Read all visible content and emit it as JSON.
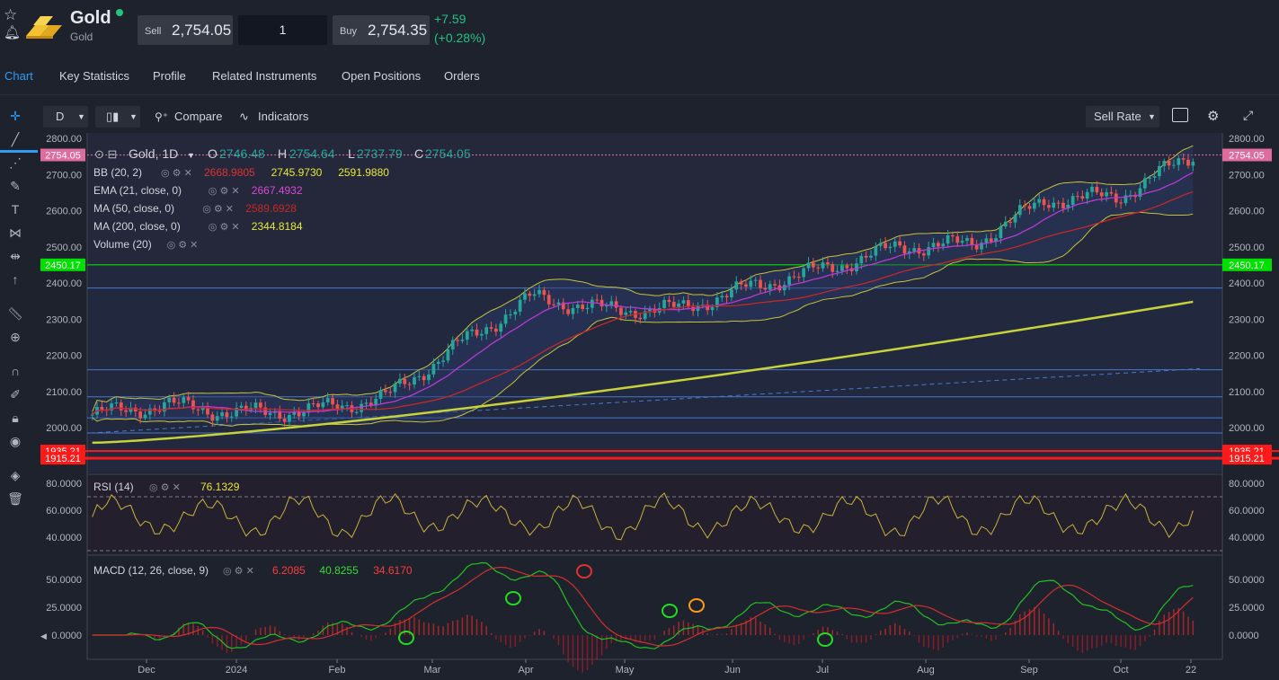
{
  "instrument": {
    "name": "Gold",
    "sub": "Gold"
  },
  "quote": {
    "sell_label": "Sell",
    "sell": "2,754.05",
    "quantity": "1",
    "buy_label": "Buy",
    "buy": "2,754.35",
    "change": "+7.59",
    "change_pct": "(+0.28%)"
  },
  "tabs": [
    "Chart",
    "Key Statistics",
    "Profile",
    "Related Instruments",
    "Open Positions",
    "Orders"
  ],
  "toolbar": {
    "interval": "D",
    "compare": "Compare",
    "indicators": "Indicators",
    "rate": "Sell Rate"
  },
  "colors": {
    "bg": "#1e222d",
    "up": "#26a69a",
    "down": "#ef5350",
    "accent": "#2e9bf5",
    "bb": "#c8c23a",
    "ema": "#b93ad2",
    "ma50": "#c62828",
    "ma200": "#c8d23a",
    "green_line": "#00e000",
    "red_line": "#ff1a1a"
  },
  "legend": {
    "symbol": "Gold, 1D",
    "o_label": "O",
    "o": "2746.48",
    "h_label": "H",
    "h": "2754.64",
    "l_label": "L",
    "l": "2737.79",
    "c_label": "C",
    "c": "2754.05",
    "indicators": [
      {
        "name": "BB (20, 2)",
        "values": [
          "2668.9805",
          "2745.9730",
          "2591.9880"
        ],
        "colors": [
          "#d33",
          "#e8e838",
          "#e8e838"
        ]
      },
      {
        "name": "EMA (21, close, 0)",
        "values": [
          "2667.4932"
        ],
        "colors": [
          "#d64ad6"
        ]
      },
      {
        "name": "MA (50, close, 0)",
        "values": [
          "2589.6928"
        ],
        "colors": [
          "#c62828"
        ]
      },
      {
        "name": "MA (200, close, 0)",
        "values": [
          "2344.8184"
        ],
        "colors": [
          "#e8e838"
        ]
      },
      {
        "name": "Volume (20)",
        "values": [],
        "colors": []
      }
    ]
  },
  "price_axis": {
    "ticks": [
      "2800.00",
      "2700.00",
      "2600.00",
      "2500.00",
      "2400.00",
      "2300.00",
      "2200.00",
      "2100.00",
      "2000.00"
    ],
    "tick_values": [
      2800,
      2700,
      2600,
      2500,
      2400,
      2300,
      2200,
      2100,
      2000
    ]
  },
  "price_labels": [
    {
      "text": "2754.05",
      "value": 2754.05,
      "color": "#e06c9f"
    },
    {
      "text": "2450.17",
      "value": 2450.17,
      "color": "#00e000"
    },
    {
      "text": "1935.21",
      "value": 1935.21,
      "color": "#ff1a1a"
    },
    {
      "text": "1915.21",
      "value": 1915.21,
      "color": "#ff1a1a"
    }
  ],
  "horizontal_levels": [
    2386,
    2160,
    2085,
    2027,
    1985
  ],
  "time_axis": [
    "Dec",
    "2024",
    "Feb",
    "Mar",
    "Apr",
    "May",
    "Jun",
    "Jul",
    "Aug",
    "Sep",
    "Oct",
    "22"
  ],
  "rsi": {
    "name": "RSI (14)",
    "value": "76.1329",
    "ticks": [
      "80.0000",
      "60.0000",
      "40.0000"
    ],
    "tick_values": [
      80,
      60,
      40
    ]
  },
  "macd": {
    "name": "MACD (12, 26, close, 9)",
    "values": [
      "6.2085",
      "40.8255",
      "34.6170"
    ],
    "ticks": [
      "50.0000",
      "25.0000",
      "0.0000"
    ],
    "tick_values": [
      50,
      25,
      0
    ]
  },
  "chart_data": {
    "type": "candlestick",
    "title": "Gold, 1D",
    "x": [
      "Dec",
      "2024",
      "Feb",
      "Mar",
      "Apr",
      "May",
      "Jun",
      "Jul",
      "Aug",
      "Sep",
      "Oct",
      "22"
    ],
    "close_approx": [
      2036,
      2063,
      2040,
      2048,
      2083,
      2230,
      2360,
      2326,
      2328,
      2390,
      2440,
      2500,
      2508,
      2630,
      2640,
      2754
    ],
    "ylim": [
      1880,
      2810
    ]
  }
}
